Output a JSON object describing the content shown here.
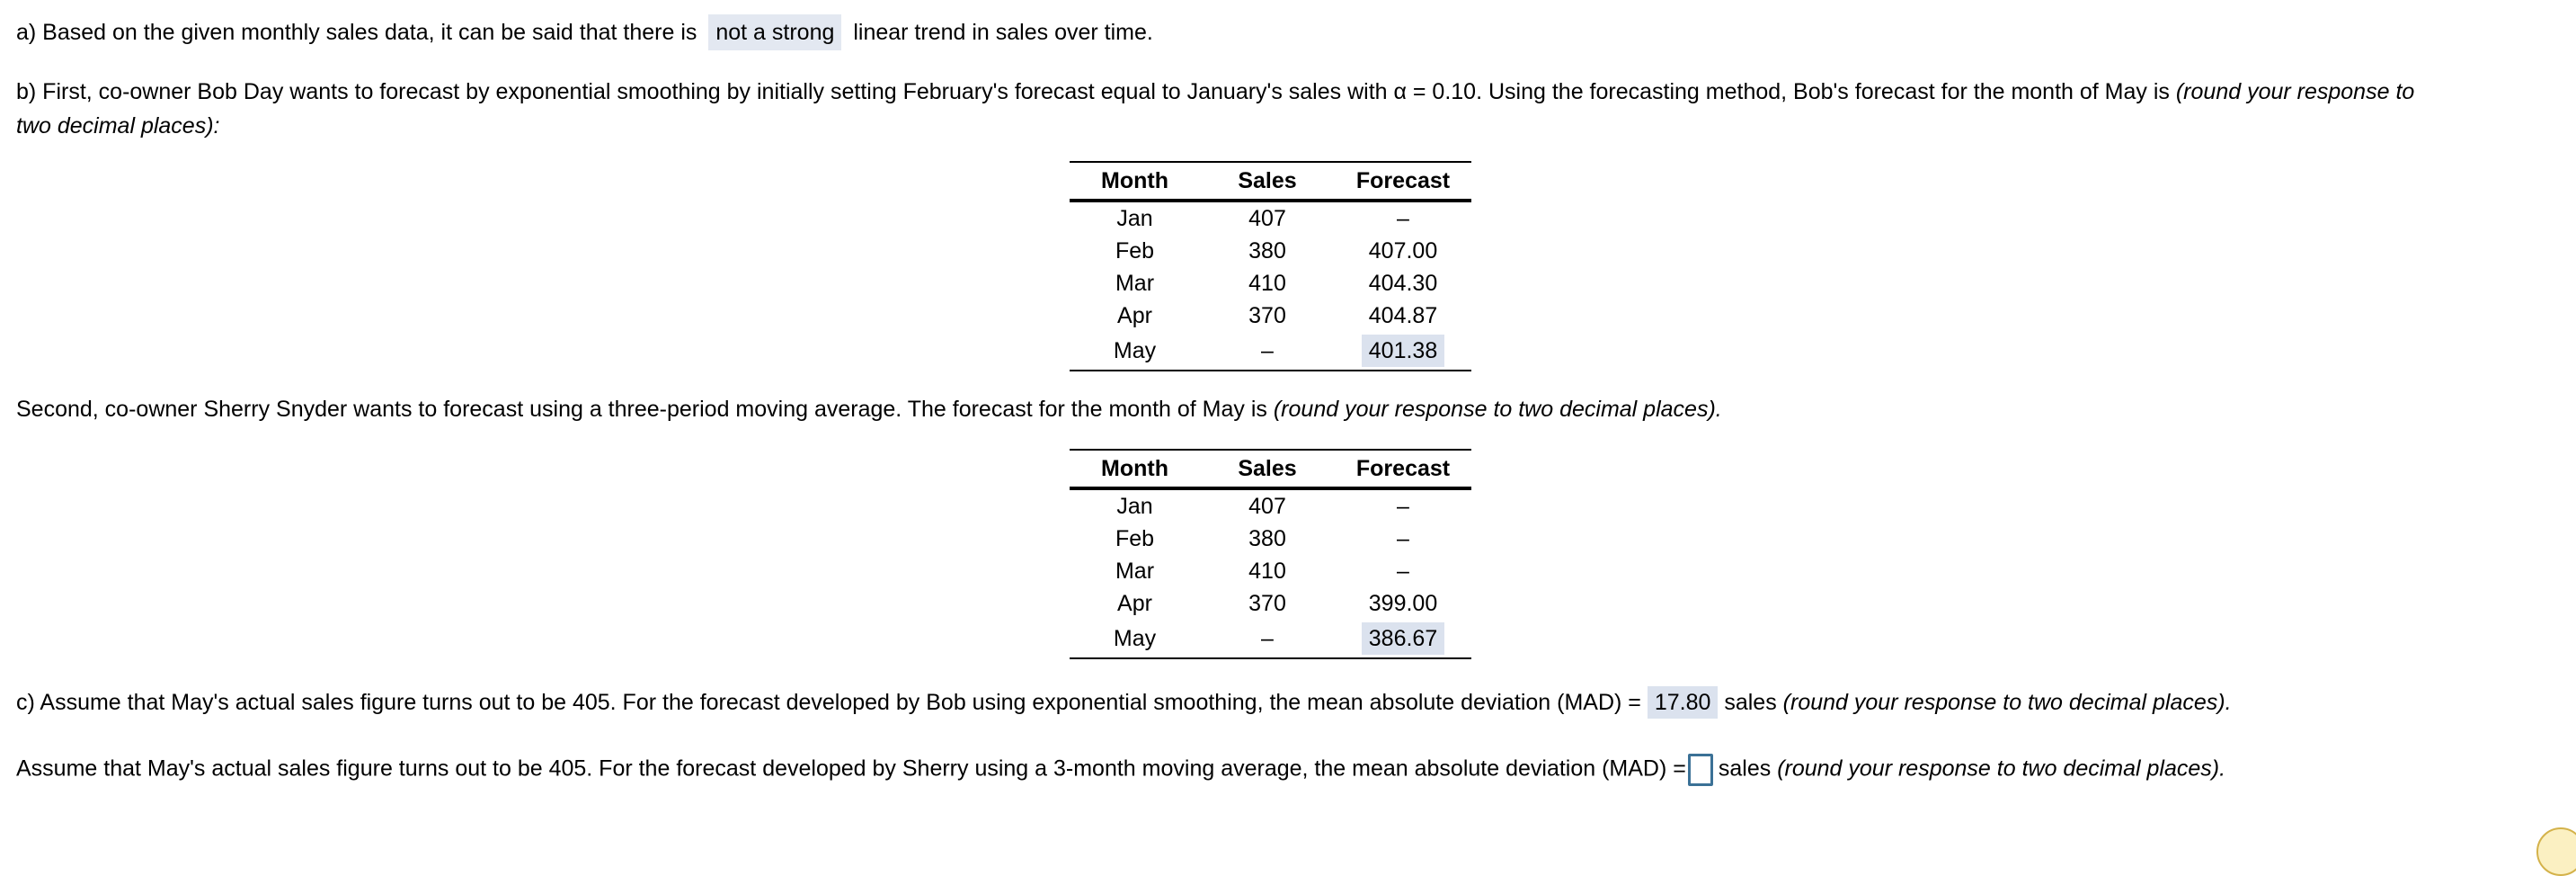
{
  "part_a": {
    "before": "a) Based on the given monthly sales data, it can be said that there is",
    "answer": "not a strong",
    "after": "linear trend in sales over time."
  },
  "part_b": {
    "text": "b) First, co-owner Bob Day wants to forecast by exponential smoothing by initially setting February's forecast equal to January's sales with α = 0.10.  Using the forecasting method, Bob's forecast for the month of May is ",
    "italic1": "(round your response to",
    "italic2": "two decimal places):"
  },
  "table1": {
    "headers": [
      "Month",
      "Sales",
      "Forecast"
    ],
    "rows": [
      [
        "Jan",
        "407",
        "–"
      ],
      [
        "Feb",
        "380",
        "407.00"
      ],
      [
        "Mar",
        "410",
        "404.30"
      ],
      [
        "Apr",
        "370",
        "404.87"
      ],
      [
        "May",
        "–",
        "401.38"
      ]
    ]
  },
  "part_b2": {
    "text": "Second, co-owner Sherry Snyder wants to forecast using a three-period moving average.  The forecast for the month of May is ",
    "italic": "(round your response to two decimal places)."
  },
  "table2": {
    "headers": [
      "Month",
      "Sales",
      "Forecast"
    ],
    "rows": [
      [
        "Jan",
        "407",
        "–"
      ],
      [
        "Feb",
        "380",
        "–"
      ],
      [
        "Mar",
        "410",
        "–"
      ],
      [
        "Apr",
        "370",
        "399.00"
      ],
      [
        "May",
        "–",
        "386.67"
      ]
    ]
  },
  "part_c": {
    "text": "c) Assume that May's actual sales figure turns out to be 405.  For the forecast developed by Bob using exponential smoothing, the mean absolute deviation (MAD) =",
    "answer": "17.80",
    "after": "sales",
    "italic": "(round your response to two decimal places)."
  },
  "part_c2": {
    "text": "Assume that May's actual sales figure turns out to be 405.  For the forecast developed by Sherry using a 3-month moving average, the mean absolute deviation (MAD) =",
    "answer": "",
    "after": "sales",
    "italic": "(round your response to two decimal places)."
  },
  "colors": {
    "answer_bg": "#e3e8f1",
    "input_border": "#3b7196"
  }
}
